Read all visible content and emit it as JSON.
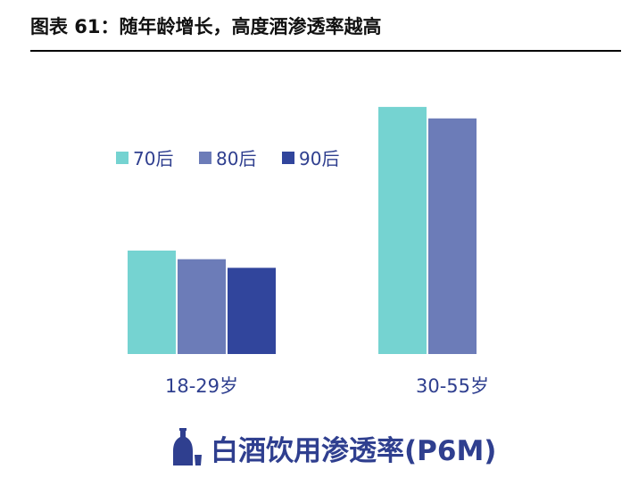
{
  "header": {
    "title": "图表 61：随年龄增长，高度酒渗透率越高"
  },
  "caption": {
    "text": "白酒饮用渗透率(P6M)",
    "icon": "liquor-bottle-cup-icon"
  },
  "colors": {
    "s70": "#75d3d1",
    "s80": "#6c7cb8",
    "s90": "#31459c",
    "tick": "#2f3f8f",
    "caption": "#2f3f8f"
  },
  "chart_data": {
    "type": "bar",
    "categories": [
      "18-29岁",
      "30-55岁"
    ],
    "series": [
      {
        "name": "70后",
        "values": [
          36,
          86
        ]
      },
      {
        "name": "80后",
        "values": [
          33,
          82
        ]
      },
      {
        "name": "90后",
        "values": [
          30,
          null
        ]
      }
    ],
    "ylim": [
      0,
      90
    ],
    "grid": false,
    "legend": "top-left",
    "title": "",
    "xlabel": "",
    "ylabel": ""
  }
}
